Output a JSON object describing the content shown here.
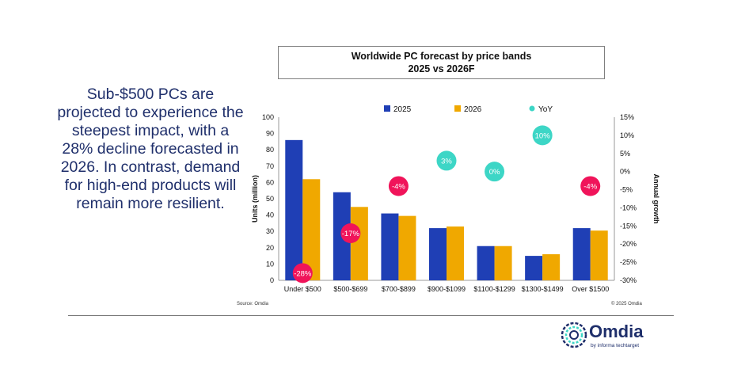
{
  "summary_text": "Sub-$500 PCs are projected to experience the steepest impact, with a 28% decline forecasted in 2026. In contrast, demand for high-end products will remain more resilient.",
  "source": "Source: Omdia",
  "copyright": "© 2025 Omdia",
  "logo": {
    "name": "Omdia",
    "tagline": "by informa techtarget"
  },
  "colors": {
    "s2025": "#1f3fb5",
    "s2026": "#f0a800",
    "yoy_pos": "#3dd6c6",
    "yoy_neg": "#f0145a",
    "text": "#1f2f6b"
  },
  "chart_data": {
    "type": "bar",
    "title": "Worldwide PC forecast by price bands",
    "subtitle": "2025 vs 2026F",
    "categories": [
      "Under $500",
      "$500-$699",
      "$700-$899",
      "$900-$1099",
      "$1100-$1299",
      "$1300-$1499",
      "Over $1500"
    ],
    "series": [
      {
        "name": "2025",
        "values": [
          86,
          54,
          41,
          32,
          21,
          15,
          32
        ]
      },
      {
        "name": "2026",
        "values": [
          62,
          45,
          39.5,
          33,
          21,
          16,
          30.5
        ]
      }
    ],
    "yoy": {
      "name": "YoY",
      "values": [
        -28,
        -17,
        -4,
        3,
        0,
        10,
        -4
      ],
      "labels": [
        "-28%",
        "-17%",
        "-4%",
        "3%",
        "0%",
        "10%",
        "-4%"
      ]
    },
    "ylabel": "Units (million)",
    "y2label": "Annual growth",
    "ylim": [
      0,
      100
    ],
    "yticks": [
      "0",
      "10",
      "20",
      "30",
      "40",
      "50",
      "60",
      "70",
      "80",
      "90",
      "100"
    ],
    "y2lim": [
      -30,
      15
    ],
    "y2ticks": [
      "15%",
      "10%",
      "5%",
      "0%",
      "-5%",
      "-10%",
      "-15%",
      "-20%",
      "-25%",
      "-30%"
    ],
    "legend_position": "top"
  }
}
